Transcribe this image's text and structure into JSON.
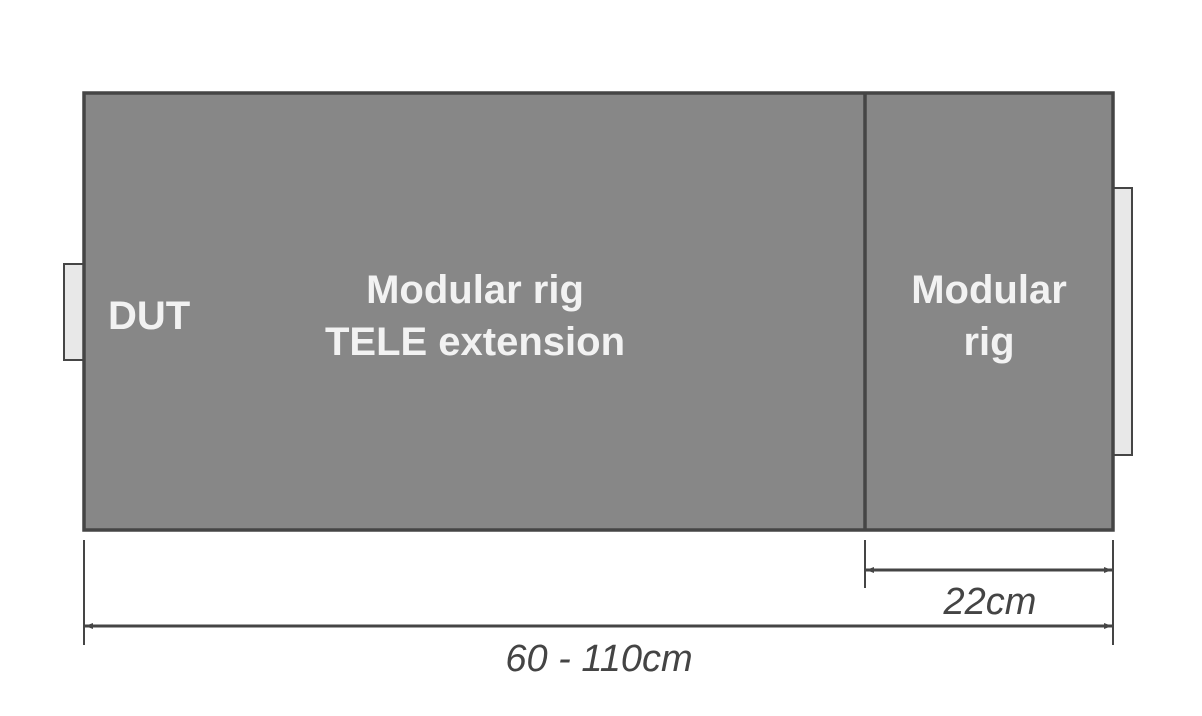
{
  "labels": {
    "dut": "DUT",
    "extension_line1": "Modular rig",
    "extension_line2": "TELE extension",
    "rig_line1": "Modular",
    "rig_line2": "rig"
  },
  "dimensions": {
    "rig_length": "22cm",
    "total_length": "60 - 110cm"
  },
  "colors": {
    "body_fill": "#878787",
    "outline": "#454545",
    "tab_fill": "#e8e8e8",
    "label_text": "#f2f2f2",
    "dimension_text": "#444444"
  }
}
